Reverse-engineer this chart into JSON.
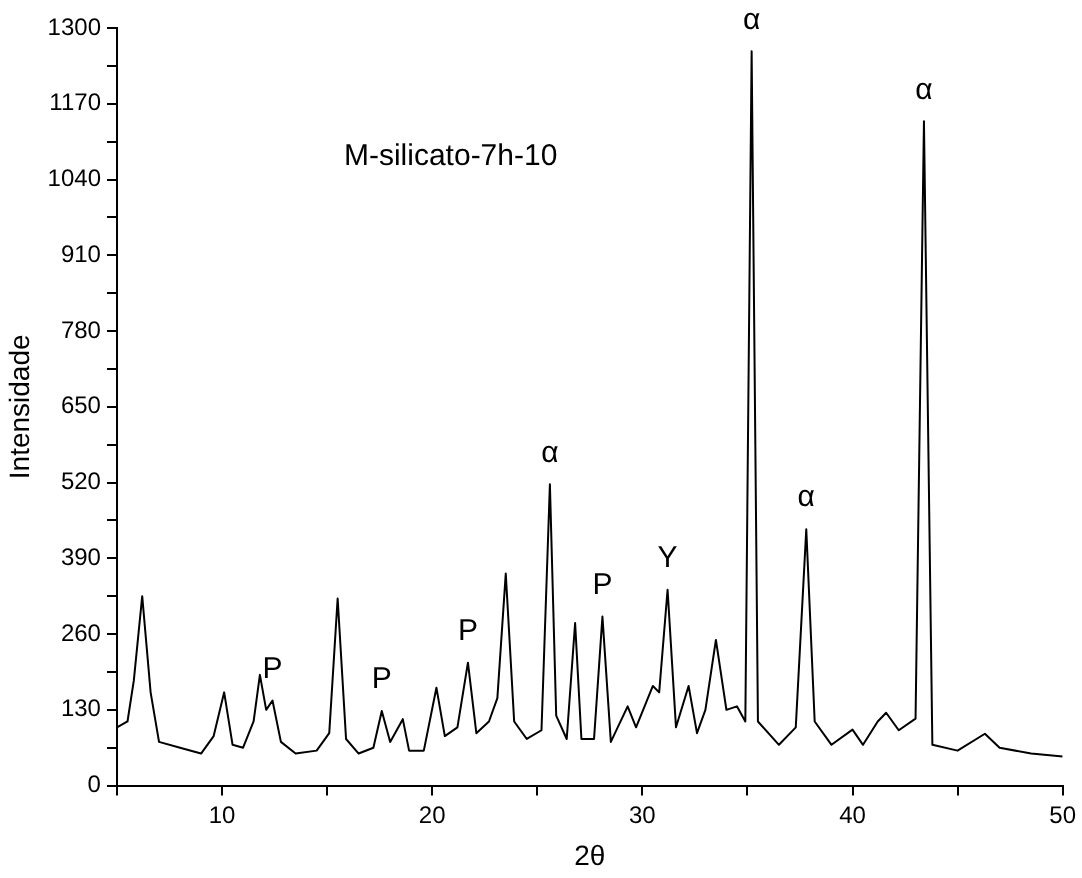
{
  "chart_data": {
    "type": "line",
    "xlabel": "2θ",
    "ylabel": "Intensidade",
    "x": [
      5.0,
      5.5,
      5.8,
      6.2,
      6.6,
      7.0,
      8.0,
      9.0,
      9.6,
      10.1,
      10.5,
      11.0,
      11.5,
      11.8,
      12.1,
      12.4,
      12.8,
      13.5,
      14.5,
      15.1,
      15.5,
      15.9,
      16.5,
      17.2,
      17.6,
      18.0,
      18.6,
      18.9,
      19.6,
      20.2,
      20.6,
      21.2,
      21.7,
      22.1,
      22.7,
      23.1,
      23.5,
      23.9,
      24.5,
      25.2,
      25.6,
      25.9,
      26.4,
      26.8,
      27.1,
      27.7,
      28.1,
      28.5,
      29.3,
      29.7,
      30.5,
      30.8,
      31.2,
      31.6,
      32.2,
      32.6,
      33.0,
      33.5,
      34.0,
      34.5,
      34.9,
      35.2,
      35.5,
      36.5,
      37.3,
      37.8,
      38.2,
      39.0,
      40.0,
      40.5,
      41.2,
      41.6,
      42.2,
      43.0,
      43.4,
      43.8,
      45.0,
      46.3,
      47.0,
      48.5,
      50.0
    ],
    "series": [
      {
        "color": "#000000",
        "values": [
          100,
          110,
          180,
          325,
          160,
          75,
          65,
          55,
          85,
          160,
          70,
          65,
          110,
          190,
          130,
          146,
          75,
          55,
          60,
          90,
          321,
          80,
          55,
          65,
          128,
          75,
          114,
          60,
          60,
          168,
          85,
          100,
          211,
          90,
          110,
          150,
          364,
          110,
          80,
          95,
          517,
          120,
          80,
          279,
          80,
          80,
          290,
          75,
          136,
          100,
          171,
          160,
          336,
          100,
          171,
          90,
          130,
          250,
          130,
          136,
          110,
          1260,
          110,
          70,
          100,
          440,
          110,
          70,
          96,
          70,
          110,
          125,
          95,
          115,
          1140,
          70,
          60,
          89,
          65,
          55,
          50
        ]
      }
    ],
    "xlim": [
      5,
      50
    ],
    "xticks": [
      {
        "value": 5,
        "label": null
      },
      10,
      {
        "value": 15,
        "label": null
      },
      20,
      {
        "value": 25,
        "label": null
      },
      30,
      {
        "value": 35,
        "label": null
      },
      40,
      {
        "value": 45,
        "label": null
      },
      50
    ],
    "ylim": [
      0,
      1300
    ],
    "yticks": [
      0,
      {
        "value": 65,
        "label": null
      },
      130,
      {
        "value": 195,
        "label": null
      },
      260,
      {
        "value": 325,
        "label": null
      },
      390,
      {
        "value": 455,
        "label": null
      },
      520,
      {
        "value": 585,
        "label": null
      },
      650,
      {
        "value": 715,
        "label": null
      },
      780,
      {
        "value": 845,
        "label": null
      },
      910,
      {
        "value": 975,
        "label": null
      },
      1040,
      {
        "value": 1105,
        "label": null
      },
      1170,
      {
        "value": 1235,
        "label": null
      },
      1300
    ],
    "grid": false,
    "legend": false,
    "marker": "none",
    "line_style": "solid",
    "annotations": [
      "M-silicato-7h-10",
      {
        "text": "P",
        "x": 12.4,
        "y": 146
      },
      {
        "text": "P",
        "x": 17.6,
        "y": 128
      },
      {
        "text": "P",
        "x": 21.7,
        "y": 211
      },
      {
        "text": "α",
        "x": 25.6,
        "y": 517
      },
      {
        "text": "P",
        "x": 28.1,
        "y": 290
      },
      {
        "text": "Y",
        "x": 31.2,
        "y": 336
      },
      {
        "text": "α",
        "x": 35.2,
        "y": 1260
      },
      {
        "text": "α",
        "x": 37.8,
        "y": 440
      },
      {
        "text": "α",
        "x": 43.4,
        "y": 1140
      }
    ]
  }
}
